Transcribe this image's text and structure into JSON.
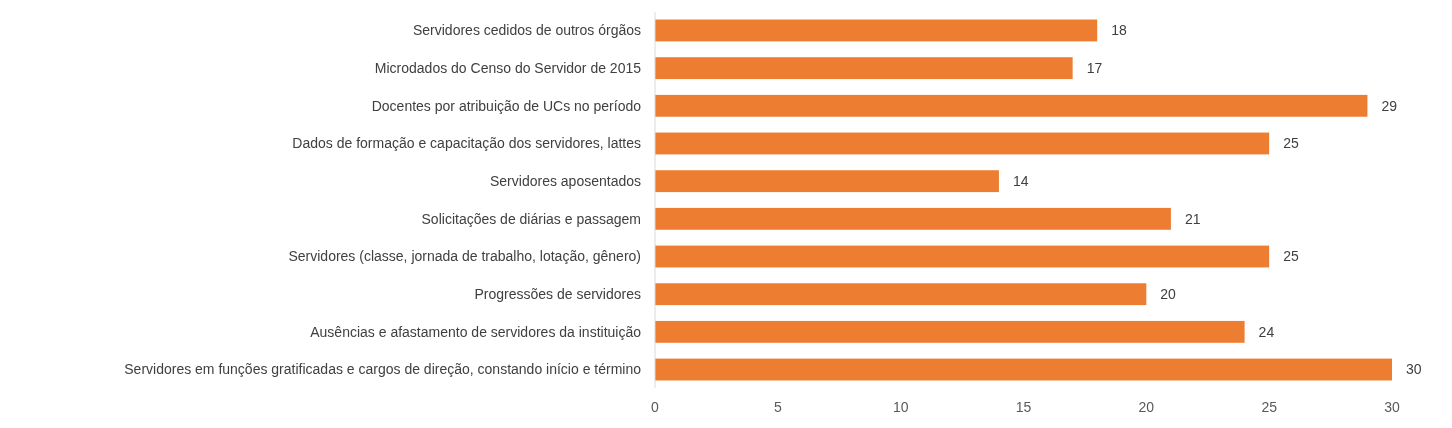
{
  "chart_data": {
    "type": "bar",
    "orientation": "horizontal",
    "categories": [
      "Servidores cedidos de outros órgãos",
      "Microdados do Censo do Servidor de 2015",
      "Docentes por atribuição de UCs no período",
      "Dados de formação e capacitação dos servidores, lattes",
      "Servidores aposentados",
      "Solicitações de diárias e passagem",
      "Servidores (classe, jornada de trabalho, lotação, gênero)",
      "Progressões de servidores",
      "Ausências e afastamento de servidores da instituição",
      "Servidores em funções gratificadas e cargos de direção, constando início e término"
    ],
    "values": [
      18,
      17,
      29,
      25,
      14,
      21,
      25,
      20,
      24,
      30
    ],
    "color": "#ed7d31",
    "xlim": [
      0,
      30
    ],
    "xticks": [
      0,
      5,
      10,
      15,
      20,
      25,
      30
    ],
    "data_labels": true
  }
}
